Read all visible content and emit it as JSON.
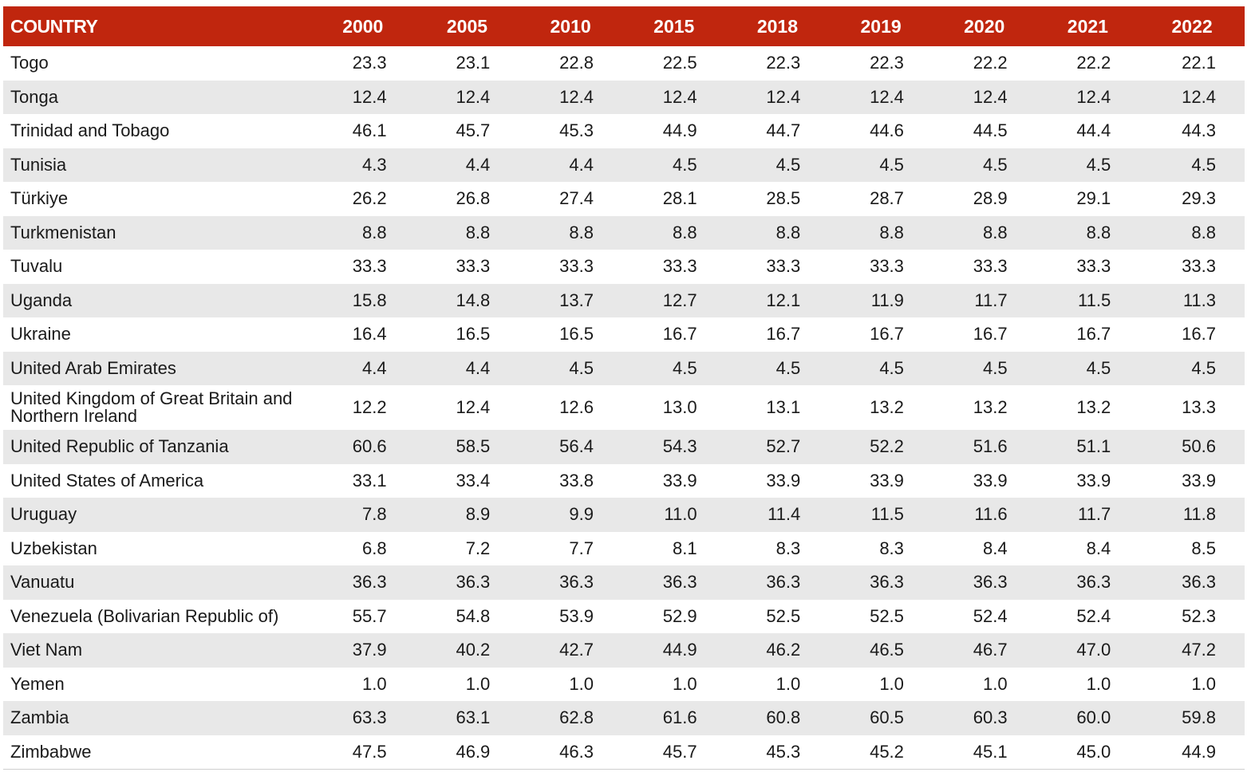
{
  "table": {
    "headers": [
      "COUNTRY",
      "2000",
      "2005",
      "2010",
      "2015",
      "2018",
      "2019",
      "2020",
      "2021",
      "2022"
    ],
    "header_color": "#c0260e",
    "stripe_color": "#e8e8e8",
    "rows": [
      {
        "country": "Togo",
        "values": [
          "23.3",
          "23.1",
          "22.8",
          "22.5",
          "22.3",
          "22.3",
          "22.2",
          "22.2",
          "22.1"
        ]
      },
      {
        "country": "Tonga",
        "values": [
          "12.4",
          "12.4",
          "12.4",
          "12.4",
          "12.4",
          "12.4",
          "12.4",
          "12.4",
          "12.4"
        ]
      },
      {
        "country": "Trinidad and Tobago",
        "values": [
          "46.1",
          "45.7",
          "45.3",
          "44.9",
          "44.7",
          "44.6",
          "44.5",
          "44.4",
          "44.3"
        ]
      },
      {
        "country": "Tunisia",
        "values": [
          "4.3",
          "4.4",
          "4.4",
          "4.5",
          "4.5",
          "4.5",
          "4.5",
          "4.5",
          "4.5"
        ]
      },
      {
        "country": "Türkiye",
        "values": [
          "26.2",
          "26.8",
          "27.4",
          "28.1",
          "28.5",
          "28.7",
          "28.9",
          "29.1",
          "29.3"
        ]
      },
      {
        "country": "Turkmenistan",
        "values": [
          "8.8",
          "8.8",
          "8.8",
          "8.8",
          "8.8",
          "8.8",
          "8.8",
          "8.8",
          "8.8"
        ]
      },
      {
        "country": "Tuvalu",
        "values": [
          "33.3",
          "33.3",
          "33.3",
          "33.3",
          "33.3",
          "33.3",
          "33.3",
          "33.3",
          "33.3"
        ]
      },
      {
        "country": "Uganda",
        "values": [
          "15.8",
          "14.8",
          "13.7",
          "12.7",
          "12.1",
          "11.9",
          "11.7",
          "11.5",
          "11.3"
        ]
      },
      {
        "country": "Ukraine",
        "values": [
          "16.4",
          "16.5",
          "16.5",
          "16.7",
          "16.7",
          "16.7",
          "16.7",
          "16.7",
          "16.7"
        ]
      },
      {
        "country": "United Arab Emirates",
        "values": [
          "4.4",
          "4.4",
          "4.5",
          "4.5",
          "4.5",
          "4.5",
          "4.5",
          "4.5",
          "4.5"
        ]
      },
      {
        "country": "United Kingdom of Great Britain and Northern Ireland",
        "values": [
          "12.2",
          "12.4",
          "12.6",
          "13.0",
          "13.1",
          "13.2",
          "13.2",
          "13.2",
          "13.3"
        ]
      },
      {
        "country": "United Republic of Tanzania",
        "values": [
          "60.6",
          "58.5",
          "56.4",
          "54.3",
          "52.7",
          "52.2",
          "51.6",
          "51.1",
          "50.6"
        ]
      },
      {
        "country": "United States of America",
        "values": [
          "33.1",
          "33.4",
          "33.8",
          "33.9",
          "33.9",
          "33.9",
          "33.9",
          "33.9",
          "33.9"
        ]
      },
      {
        "country": "Uruguay",
        "values": [
          "7.8",
          "8.9",
          "9.9",
          "11.0",
          "11.4",
          "11.5",
          "11.6",
          "11.7",
          "11.8"
        ]
      },
      {
        "country": "Uzbekistan",
        "values": [
          "6.8",
          "7.2",
          "7.7",
          "8.1",
          "8.3",
          "8.3",
          "8.4",
          "8.4",
          "8.5"
        ]
      },
      {
        "country": "Vanuatu",
        "values": [
          "36.3",
          "36.3",
          "36.3",
          "36.3",
          "36.3",
          "36.3",
          "36.3",
          "36.3",
          "36.3"
        ]
      },
      {
        "country": "Venezuela (Bolivarian Republic of)",
        "values": [
          "55.7",
          "54.8",
          "53.9",
          "52.9",
          "52.5",
          "52.5",
          "52.4",
          "52.4",
          "52.3"
        ]
      },
      {
        "country": "Viet Nam",
        "values": [
          "37.9",
          "40.2",
          "42.7",
          "44.9",
          "46.2",
          "46.5",
          "46.7",
          "47.0",
          "47.2"
        ]
      },
      {
        "country": "Yemen",
        "values": [
          "1.0",
          "1.0",
          "1.0",
          "1.0",
          "1.0",
          "1.0",
          "1.0",
          "1.0",
          "1.0"
        ]
      },
      {
        "country": "Zambia",
        "values": [
          "63.3",
          "63.1",
          "62.8",
          "61.6",
          "60.8",
          "60.5",
          "60.3",
          "60.0",
          "59.8"
        ]
      },
      {
        "country": "Zimbabwe",
        "values": [
          "47.5",
          "46.9",
          "46.3",
          "45.7",
          "45.3",
          "45.2",
          "45.1",
          "45.0",
          "44.9"
        ]
      }
    ]
  }
}
